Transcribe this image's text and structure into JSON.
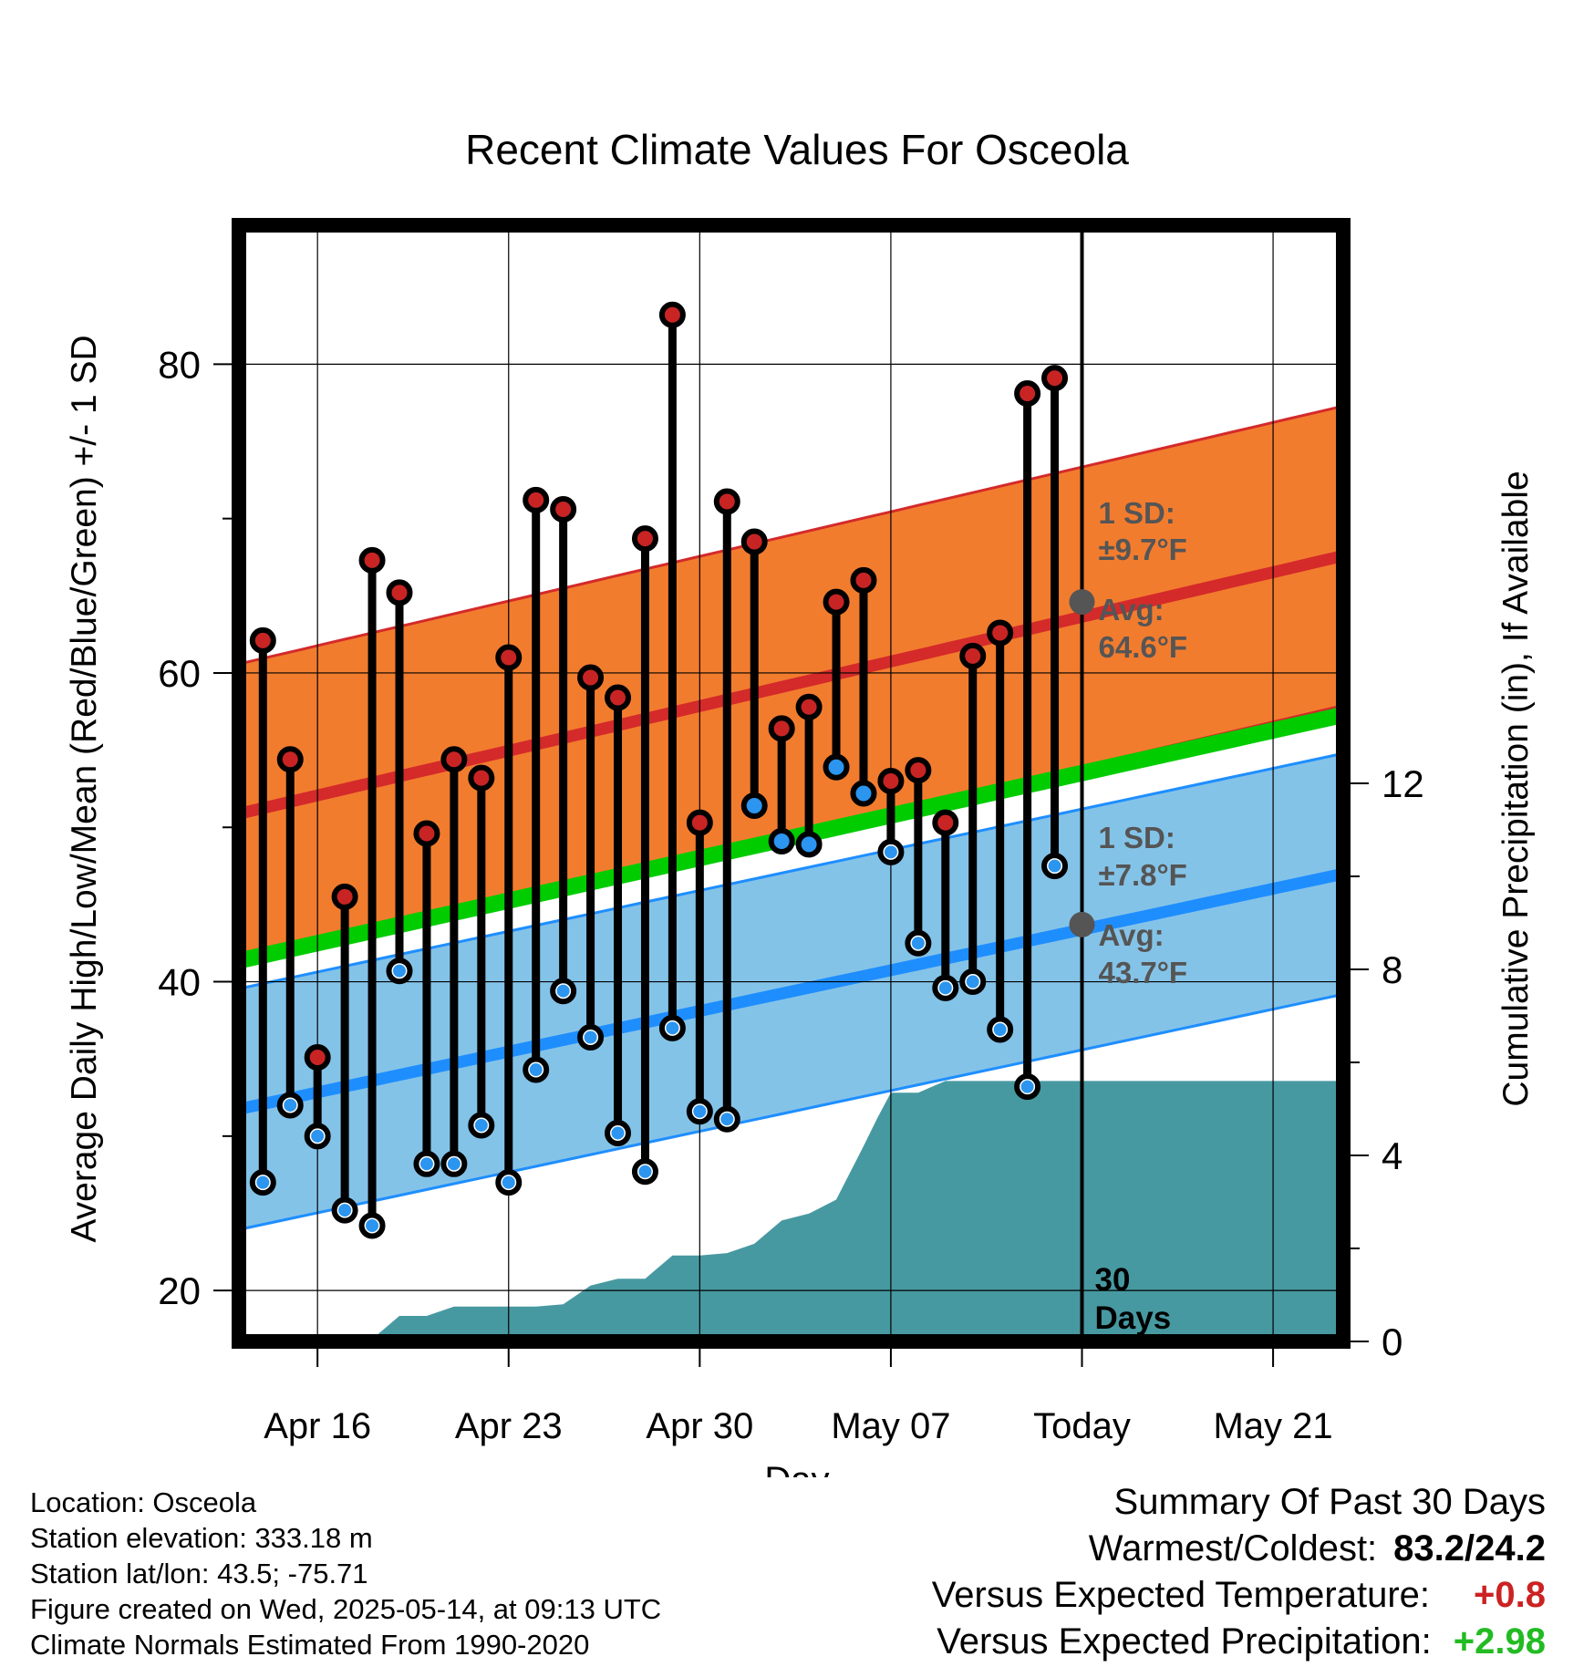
{
  "chart_data": {
    "type": "climate-range",
    "title": "Recent Climate Values For Osceola",
    "xlabel": "Day",
    "ylabel_left": "Average Daily High/Low/Mean (Red/Blue/Green) +/- 1 SD",
    "ylabel_right": "Cumulative Precipitation (in), If Available",
    "x_ticks": [
      "Apr 16",
      "Apr 23",
      "Apr 30",
      "May 07",
      "Today",
      "May 21"
    ],
    "y_left_ticks": [
      "20",
      "40",
      "60",
      "80"
    ],
    "y_left_range": [
      16.7,
      89
    ],
    "y_right_ticks": [
      "0",
      "4",
      "8",
      "12"
    ],
    "y_right_range": [
      0,
      24
    ],
    "x_range_days": [
      -31.8,
      9.6
    ],
    "grid": true,
    "today_marker": {
      "line1": "30",
      "line2": "Days"
    },
    "normals": {
      "high_avg": [
        50.5,
        67.6
      ],
      "high_sd": 9.7,
      "low_avg": [
        31.4,
        47.0
      ],
      "low_sd": 7.8,
      "mean": [
        41.0,
        57.3
      ]
    },
    "high_annotation": {
      "sd": "1 SD:",
      "sd_value": "±9.7°F",
      "avg": "Avg:",
      "avg_value": "64.6°F",
      "today_value": 64.6
    },
    "low_annotation": {
      "sd": "1 SD:",
      "sd_value": "±7.8°F",
      "avg": "Avg:",
      "avg_value": "43.7°F",
      "today_value": 43.7
    },
    "daily_days": [
      -30,
      -29,
      -28,
      -27,
      -26,
      -25,
      -24,
      -23,
      -22,
      -21,
      -20,
      -19,
      -18,
      -17,
      -16,
      -15,
      -14,
      -13,
      -12,
      -11,
      -10,
      -9,
      -8,
      -7,
      -6,
      -5,
      -4,
      -3,
      -2,
      -1
    ],
    "daily_highs": [
      62.1,
      54.4,
      35.1,
      45.5,
      67.3,
      65.2,
      49.6,
      54.4,
      53.2,
      61.0,
      71.2,
      70.6,
      59.7,
      58.4,
      68.7,
      83.2,
      50.3,
      71.1,
      68.5,
      56.4,
      57.8,
      64.6,
      66.0,
      53.0,
      53.7,
      50.3,
      61.1,
      62.6,
      78.1,
      79.1
    ],
    "daily_lows": [
      27.0,
      32.0,
      30.0,
      25.2,
      24.2,
      40.7,
      28.2,
      28.2,
      30.7,
      27.0,
      34.3,
      39.4,
      36.4,
      30.2,
      27.7,
      37.0,
      31.6,
      31.1,
      51.4,
      49.1,
      48.9,
      53.9,
      52.2,
      48.4,
      42.5,
      39.6,
      40.0,
      36.9,
      33.2,
      47.5
    ],
    "low_above_normal": [
      false,
      false,
      false,
      false,
      false,
      false,
      false,
      false,
      false,
      false,
      false,
      false,
      false,
      false,
      false,
      false,
      false,
      false,
      true,
      true,
      true,
      true,
      true,
      false,
      false,
      false,
      false,
      false,
      false,
      false
    ],
    "precip_days": [
      -31.8,
      -29,
      -27,
      -26,
      -25,
      -24,
      -23,
      -22,
      -21,
      -20,
      -19,
      -18,
      -17,
      -16,
      -15,
      -14,
      -13,
      -12,
      -11,
      -10,
      -9,
      -8,
      -7.5,
      -7,
      -6,
      -5,
      -4,
      -3,
      -2,
      -1,
      0,
      9.6
    ],
    "precip_cumulative": [
      0.0,
      0.0,
      0.05,
      0.05,
      0.55,
      0.55,
      0.75,
      0.75,
      0.75,
      0.75,
      0.8,
      1.2,
      1.35,
      1.35,
      1.85,
      1.85,
      1.9,
      2.1,
      2.6,
      2.75,
      3.05,
      4.2,
      4.8,
      5.35,
      5.35,
      5.6,
      5.6,
      5.6,
      5.6,
      5.6,
      5.6,
      5.6
    ]
  },
  "footer_left": {
    "location": "Location: Osceola",
    "elevation": "Station elevation: 333.18 m",
    "latlon": "Station lat/lon: 43.5; -75.71",
    "created": "Figure created on Wed, 2025-05-14, at 09:13 UTC",
    "normals": "Climate Normals Estimated From 1990-2020"
  },
  "summary": {
    "title": "Summary Of Past 30 Days",
    "warm_cold_label": "Warmest/Coldest:",
    "warm_cold_value": "83.2/24.2",
    "temp_label": "Versus Expected Temperature:",
    "temp_value": "+0.8",
    "precip_label": "Versus Expected Precipitation:",
    "precip_value": "+2.98"
  },
  "colors": {
    "high_band": "#f27c2e",
    "high_line": "#d42a2a",
    "low_band": "#84c3e8",
    "low_line": "#1e8eff",
    "mean_line": "#00cc00",
    "precip_fill": "#4799a1",
    "high_dot": "#c82424",
    "low_dot": "#2b95f0",
    "annotation": "#555555",
    "temp_value": "#cc2222",
    "precip_value": "#22bb22"
  }
}
